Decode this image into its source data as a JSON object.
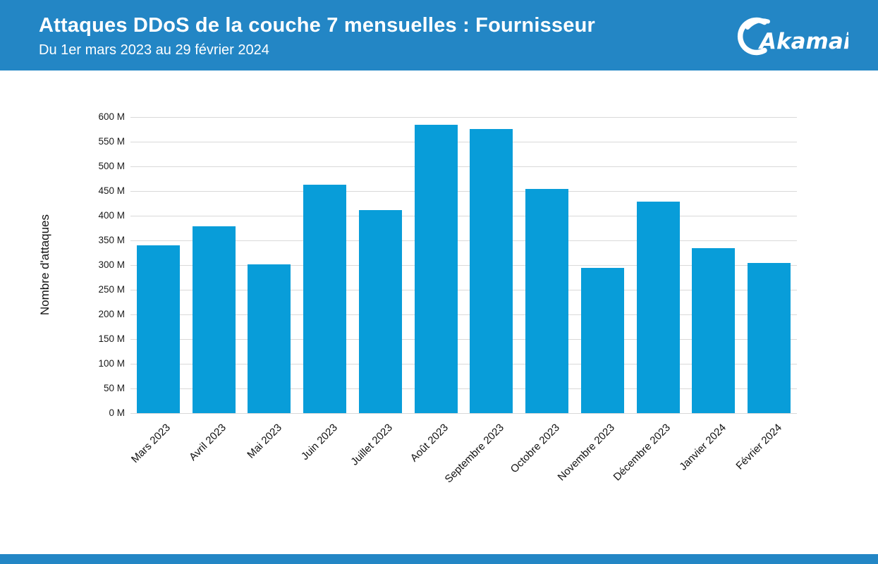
{
  "header": {
    "title": "Attaques DDoS de la couche 7 mensuelles : Fournisseur",
    "subtitle": "Du 1er mars 2023 au 29 février 2024",
    "logo_text": "Akamai"
  },
  "colors": {
    "header_blue": "#2386C5",
    "bar_blue": "#089DD9",
    "gridline": "#D9D9D9",
    "text": "#111111"
  },
  "chart_data": {
    "type": "bar",
    "title": "Attaques DDoS de la couche 7 mensuelles : Fournisseur",
    "subtitle": "Du 1er mars 2023 au 29 février 2024",
    "xlabel": "",
    "ylabel": "Nombre d'attaques",
    "unit": "M",
    "ylim": [
      0,
      600
    ],
    "ytick_step": 50,
    "yticks": [
      "0 M",
      "50 M",
      "100 M",
      "150 M",
      "200 M",
      "250 M",
      "300 M",
      "350 M",
      "400 M",
      "450 M",
      "500 M",
      "550 M",
      "600 M"
    ],
    "grid": true,
    "legend": null,
    "categories": [
      "Mars 2023",
      "Avril 2023",
      "Mai 2023",
      "Juin 2023",
      "Juillet 2023",
      "Août 2023",
      "Septembre 2023",
      "Octobre 2023",
      "Novembre 2023",
      "Décembre 2023",
      "Janvier 2024",
      "Février 2024"
    ],
    "values": [
      340,
      379,
      301,
      463,
      412,
      585,
      576,
      454,
      294,
      429,
      335,
      304
    ]
  }
}
